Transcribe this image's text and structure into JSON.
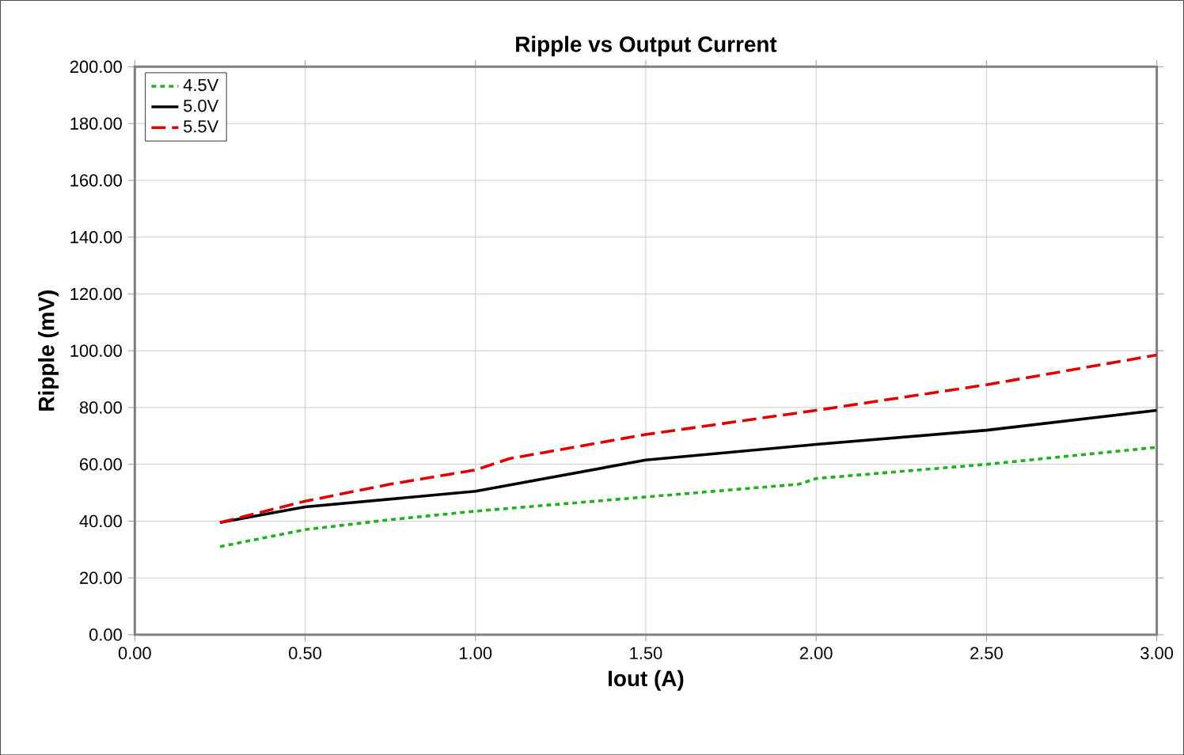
{
  "chart_data": {
    "type": "line",
    "title": "Ripple vs Output Current",
    "xlabel": "Iout (A)",
    "ylabel": "Ripple (mV)",
    "xlim": [
      0,
      3
    ],
    "ylim": [
      0,
      200
    ],
    "xticks": [
      {
        "value": 0,
        "label": "0.00"
      },
      {
        "value": 0.5,
        "label": "0.50"
      },
      {
        "value": 1,
        "label": "1.00"
      },
      {
        "value": 1.5,
        "label": "1.50"
      },
      {
        "value": 2,
        "label": "2.00"
      },
      {
        "value": 2.5,
        "label": "2.50"
      },
      {
        "value": 3,
        "label": "3.00"
      }
    ],
    "yticks": [
      {
        "value": 0,
        "label": "0.00"
      },
      {
        "value": 20,
        "label": "20.00"
      },
      {
        "value": 40,
        "label": "40.00"
      },
      {
        "value": 60,
        "label": "60.00"
      },
      {
        "value": 80,
        "label": "80.00"
      },
      {
        "value": 100,
        "label": "100.00"
      },
      {
        "value": 120,
        "label": "120.00"
      },
      {
        "value": 140,
        "label": "140.00"
      },
      {
        "value": 160,
        "label": "160.00"
      },
      {
        "value": 180,
        "label": "180.00"
      },
      {
        "value": 200,
        "label": "200.00"
      }
    ],
    "grid": true,
    "legend": "top left",
    "marker": "none",
    "series": [
      {
        "name": "4.5V",
        "color": "#22b022",
        "line_style": "dotted",
        "x": [
          0.25,
          0.5,
          0.75,
          1.0,
          1.5,
          1.75,
          1.95,
          2.0,
          2.5,
          2.75,
          3.0
        ],
        "values": [
          31,
          37,
          40.5,
          43.5,
          48.5,
          51,
          53,
          55,
          60,
          63,
          66
        ]
      },
      {
        "name": "5.0V",
        "color": "#000000",
        "line_style": "solid",
        "x": [
          0.25,
          0.5,
          1.0,
          1.5,
          2.0,
          2.5,
          3.0
        ],
        "values": [
          39.5,
          45,
          50.5,
          61.5,
          67,
          72,
          79
        ]
      },
      {
        "name": "5.5V",
        "color": "#e00000",
        "line_style": "dashed",
        "x": [
          0.25,
          0.5,
          0.75,
          1.0,
          1.1,
          1.5,
          2.0,
          2.5,
          3.0
        ],
        "values": [
          39.5,
          47,
          53,
          58,
          62,
          70.5,
          79,
          88,
          98.5
        ]
      }
    ]
  }
}
